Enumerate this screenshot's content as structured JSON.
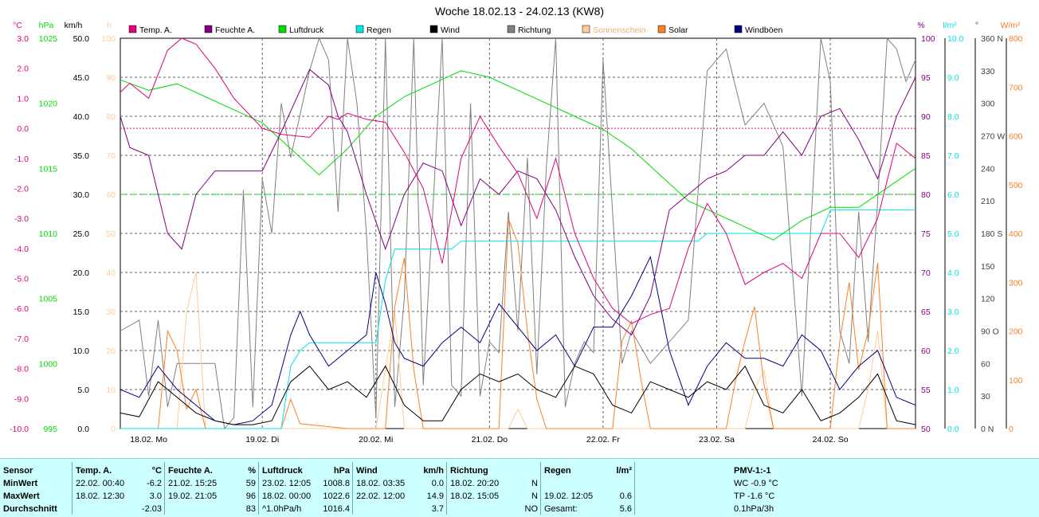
{
  "chart_data": {
    "type": "line",
    "title": "Woche 18.02.13 - 24.02.13 (KW8)",
    "x_range": [
      "18.02.2013 00:00",
      "25.02.2013 00:00"
    ],
    "x_tick_labels": [
      "18.02.  Mo",
      "19.02.  Di",
      "20.02.  Mi",
      "21.02.  Do",
      "22.02.  Fr",
      "23.02.  Sa",
      "24.02.  So"
    ],
    "legend": [
      {
        "name": "Temp. A.",
        "color": "#e0007f"
      },
      {
        "name": "Feuchte A.",
        "color": "#7f007f"
      },
      {
        "name": "Luftdruck",
        "color": "#00dd00"
      },
      {
        "name": "Regen",
        "color": "#00e5e5"
      },
      {
        "name": "Wind",
        "color": "#000000"
      },
      {
        "name": "Richtung",
        "color": "#808080"
      },
      {
        "name": "Sonnenschein",
        "color": "#ffcc99"
      },
      {
        "name": "Solar",
        "color": "#ff7f27"
      },
      {
        "name": "Windböen",
        "color": "#000080"
      }
    ],
    "axes": {
      "temp": {
        "unit": "°C",
        "range": [
          -10,
          3
        ],
        "ticks": [
          "3.0",
          "2.0",
          "1.0",
          "0.0",
          "-1.0",
          "-2.0",
          "-3.0",
          "-4.0",
          "-5.0",
          "-6.0",
          "-7.0",
          "-8.0",
          "-9.0",
          "-10.0"
        ],
        "color": "#e0007f"
      },
      "pressure": {
        "unit": "hPa",
        "range": [
          995,
          1025
        ],
        "ticks": [
          "1025",
          "1020",
          "1015",
          "1010",
          "1005",
          "1000",
          "995"
        ],
        "color": "#00dd00"
      },
      "wind": {
        "unit": "km/h",
        "range": [
          0,
          50
        ],
        "ticks": [
          "50.0",
          "45.0",
          "40.0",
          "35.0",
          "30.0",
          "25.0",
          "20.0",
          "15.0",
          "10.0",
          "5.0",
          "0.0"
        ],
        "color": "#000000"
      },
      "sunshine": {
        "unit": "h",
        "range": [
          0,
          100
        ],
        "ticks": [
          "100",
          "90",
          "80",
          "70",
          "60",
          "50",
          "40",
          "30",
          "20",
          "10",
          "0"
        ],
        "color": "#ffcc99"
      },
      "humidity": {
        "unit": "%",
        "range": [
          50,
          100
        ],
        "ticks": [
          "100",
          "95",
          "90",
          "85",
          "80",
          "75",
          "70",
          "65",
          "60",
          "55",
          "50"
        ],
        "color": "#7f007f"
      },
      "rain": {
        "unit": "l/m²",
        "range": [
          0,
          10
        ],
        "ticks": [
          "10.0",
          "9.0",
          "8.0",
          "7.0",
          "6.0",
          "5.0",
          "4.0",
          "3.0",
          "2.0",
          "1.0",
          "0.0"
        ],
        "color": "#00e5e5"
      },
      "direction": {
        "unit": "°",
        "range": [
          0,
          360
        ],
        "ticks": [
          "360 N",
          "330",
          "300",
          "270 W",
          "240",
          "210",
          "180 S",
          "150",
          "120",
          "90 O",
          "60",
          "30",
          "0 N"
        ],
        "color": "#404040"
      },
      "solar": {
        "unit": "W/m²",
        "range": [
          0,
          800
        ],
        "ticks": [
          "800",
          "700",
          "600",
          "500",
          "400",
          "300",
          "200",
          "100",
          "0"
        ],
        "color": "#ff7f27"
      }
    },
    "reference_lines": [
      {
        "axis": "temp",
        "value": 0.0,
        "color": "#e0007f",
        "style": "dotted"
      },
      {
        "axis": "humidity",
        "value": 80,
        "color": "#00dd00",
        "style": "dashed"
      }
    ],
    "series": [
      {
        "name": "Temp. A.",
        "axis": "temp",
        "color": "#e0007f",
        "x": [
          0,
          2,
          6,
          10,
          13,
          16,
          20,
          24,
          30,
          34,
          40,
          44,
          46,
          48,
          52,
          56,
          60,
          64,
          68,
          72,
          76,
          80,
          84,
          88,
          92,
          96,
          100,
          104,
          108,
          112,
          116,
          120,
          124,
          128,
          132,
          136,
          140,
          144,
          148,
          152,
          156,
          160,
          164,
          168
        ],
        "y": [
          1.2,
          1.5,
          1.0,
          2.6,
          3.0,
          2.8,
          2.0,
          1.0,
          0.0,
          -0.2,
          -0.3,
          0.4,
          0.3,
          0.5,
          0.3,
          0.2,
          -0.8,
          -2.0,
          -4.5,
          -1.0,
          0.4,
          -0.6,
          -1.5,
          -3.0,
          -1.0,
          -3.5,
          -5.0,
          -6.0,
          -6.5,
          -6.2,
          -6.0,
          -4.0,
          -2.5,
          -3.5,
          -5.2,
          -4.8,
          -4.5,
          -5.0,
          -3.5,
          -3.5,
          -4.3,
          -3.0,
          -0.5,
          -1.0
        ]
      },
      {
        "name": "Feuchte A.",
        "axis": "humidity",
        "color": "#7f007f",
        "x": [
          0,
          2,
          6,
          10,
          13,
          16,
          20,
          24,
          30,
          34,
          40,
          44,
          46,
          48,
          52,
          56,
          60,
          64,
          68,
          72,
          76,
          80,
          84,
          88,
          92,
          96,
          100,
          104,
          108,
          112,
          116,
          120,
          124,
          128,
          132,
          136,
          140,
          144,
          148,
          152,
          156,
          160,
          164,
          168
        ],
        "y": [
          90,
          86,
          85,
          75,
          73,
          80,
          83,
          83,
          83,
          88,
          96,
          94,
          90,
          88,
          80,
          73,
          80,
          84,
          83,
          76,
          82,
          80,
          83,
          82,
          78,
          72,
          67,
          64,
          62,
          67,
          78,
          80,
          82,
          83,
          85,
          85,
          88,
          85,
          90,
          91,
          87,
          82,
          90,
          95
        ]
      },
      {
        "name": "Luftdruck",
        "axis": "pressure",
        "color": "#00dd00",
        "x": [
          0,
          6,
          12,
          18,
          24,
          30,
          36,
          42,
          48,
          54,
          60,
          66,
          72,
          78,
          84,
          90,
          96,
          102,
          108,
          114,
          120,
          126,
          132,
          138,
          144,
          150,
          156,
          162,
          168
        ],
        "y": [
          1021.8,
          1021,
          1021.5,
          1020.5,
          1019.5,
          1018.5,
          1016.5,
          1014.5,
          1016.5,
          1019,
          1020.5,
          1021.5,
          1022.5,
          1022,
          1021,
          1020,
          1019,
          1018,
          1016.5,
          1014.5,
          1012.5,
          1011.5,
          1010.5,
          1009.5,
          1011,
          1012,
          1012,
          1013.5,
          1015
        ]
      },
      {
        "name": "Regen",
        "axis": "rain",
        "color": "#00e5e5",
        "x": [
          0,
          34,
          36,
          38,
          40,
          48,
          54,
          56,
          58,
          64,
          70,
          72,
          90,
          108,
          120,
          122,
          124,
          140,
          148,
          150,
          168
        ],
        "y": [
          0,
          0,
          1.6,
          2.0,
          2.2,
          2.2,
          2.2,
          3.8,
          4.6,
          4.6,
          4.6,
          4.8,
          4.8,
          4.8,
          4.8,
          4.8,
          5.0,
          5.0,
          5.0,
          5.6,
          5.6
        ]
      },
      {
        "name": "Wind",
        "axis": "wind",
        "color": "#000000",
        "x": [
          0,
          4,
          8,
          12,
          16,
          20,
          24,
          28,
          32,
          36,
          40,
          44,
          48,
          52,
          56,
          60,
          64,
          68,
          72,
          76,
          80,
          84,
          88,
          92,
          96,
          100,
          104,
          108,
          112,
          116,
          120,
          124,
          128,
          132,
          136,
          140,
          144,
          148,
          152,
          156,
          160,
          164,
          168
        ],
        "y": [
          2,
          1.5,
          6,
          4,
          2,
          1,
          0.5,
          0.5,
          1,
          6,
          8,
          5,
          6,
          4,
          8,
          3,
          1,
          1,
          5,
          7,
          6,
          7,
          5,
          4,
          8,
          7,
          3,
          2,
          6,
          5,
          4,
          6,
          5,
          8,
          3,
          2,
          5,
          1,
          2,
          4,
          7,
          1,
          0.5
        ]
      },
      {
        "name": "Richtung",
        "axis": "direction",
        "color": "#808080",
        "x": [
          0,
          4,
          6,
          8,
          10,
          12,
          16,
          20,
          22,
          24,
          26,
          28,
          30,
          32,
          34,
          36,
          40,
          42,
          44,
          46,
          48,
          50,
          52,
          54,
          56,
          58,
          60,
          62,
          64,
          66,
          68,
          70,
          72,
          74,
          76,
          78,
          80,
          82,
          84,
          86,
          88,
          90,
          92,
          94,
          96,
          98,
          100,
          102,
          104,
          106,
          108,
          112,
          116,
          120,
          124,
          128,
          132,
          136,
          140,
          144,
          148,
          150,
          152,
          154,
          156,
          158,
          160,
          162,
          164,
          166,
          168
        ],
        "y": [
          90,
          100,
          30,
          100,
          20,
          60,
          60,
          60,
          0,
          10,
          220,
          20,
          230,
          180,
          300,
          250,
          330,
          360,
          340,
          200,
          360,
          300,
          180,
          10,
          360,
          20,
          120,
          360,
          40,
          200,
          360,
          40,
          30,
          300,
          30,
          80,
          70,
          200,
          90,
          250,
          50,
          240,
          360,
          20,
          60,
          80,
          70,
          340,
          200,
          60,
          90,
          60,
          80,
          100,
          330,
          350,
          280,
          300,
          260,
          30,
          360,
          320,
          90,
          60,
          200,
          80,
          210,
          360,
          350,
          320,
          340
        ]
      },
      {
        "name": "Sonnenschein",
        "axis": "sunshine",
        "color": "#ffcc99",
        "x": [
          0,
          12,
          14,
          16,
          18,
          24,
          36,
          48,
          54,
          58,
          60,
          72,
          82,
          84,
          86,
          90,
          96,
          108,
          120,
          132,
          134,
          136,
          138,
          144,
          156,
          158,
          160,
          162,
          168
        ],
        "y": [
          0,
          0,
          30,
          40,
          0,
          0,
          0,
          0,
          0,
          30,
          0,
          0,
          0,
          5,
          0,
          0,
          0,
          0,
          0,
          0,
          10,
          15,
          0,
          0,
          0,
          10,
          25,
          0,
          0
        ]
      },
      {
        "name": "Solar",
        "axis": "solar",
        "color": "#ff7f27",
        "x": [
          0,
          8,
          10,
          12,
          14,
          16,
          18,
          24,
          34,
          36,
          38,
          48,
          56,
          58,
          60,
          62,
          64,
          72,
          80,
          82,
          84,
          86,
          88,
          90,
          92,
          96,
          104,
          106,
          108,
          110,
          112,
          120,
          128,
          130,
          132,
          134,
          136,
          138,
          144,
          150,
          152,
          154,
          156,
          158,
          160,
          162,
          168
        ],
        "y": [
          0,
          0,
          200,
          160,
          40,
          80,
          0,
          0,
          0,
          60,
          10,
          0,
          0,
          250,
          350,
          120,
          0,
          0,
          0,
          430,
          380,
          200,
          60,
          0,
          0,
          0,
          0,
          180,
          220,
          100,
          0,
          0,
          0,
          100,
          180,
          250,
          90,
          0,
          0,
          0,
          180,
          300,
          120,
          200,
          340,
          0,
          0
        ]
      },
      {
        "name": "Windböen",
        "axis": "wind",
        "color": "#000080",
        "x": [
          0,
          4,
          8,
          12,
          16,
          20,
          24,
          28,
          32,
          36,
          38,
          40,
          44,
          48,
          52,
          54,
          56,
          58,
          60,
          64,
          68,
          72,
          76,
          80,
          84,
          88,
          92,
          96,
          100,
          104,
          108,
          112,
          116,
          120,
          124,
          128,
          132,
          136,
          140,
          144,
          148,
          152,
          156,
          160,
          164,
          168
        ],
        "y": [
          5,
          4,
          8,
          5,
          3,
          1,
          0.5,
          1,
          3,
          12,
          15,
          12,
          8,
          10,
          12,
          20,
          16,
          11,
          9,
          8,
          11,
          13,
          11,
          16,
          13,
          10,
          12,
          8,
          13,
          13,
          17,
          22,
          10,
          3,
          8,
          11,
          9,
          9,
          8,
          12,
          10,
          5,
          8,
          10,
          4,
          3
        ]
      }
    ]
  },
  "stats": {
    "col1": {
      "h1": "Sensor",
      "r1": "MinWert",
      "r2": "MaxWert",
      "r3": "Durchschnitt"
    },
    "col2": {
      "h1": "Temp. A.",
      "unit": "°C",
      "r1_time": "22.02.  00:40",
      "r1_val": "-6.2",
      "r2_time": "18.02.  12:30",
      "r2_val": "3.0",
      "r3_val": "-2.03"
    },
    "col3": {
      "h1": "Feuchte A.",
      "unit": "%",
      "r1_time": "21.02.  15:25",
      "r1_val": "59",
      "r2_time": "19.02.  21:05",
      "r2_val": "96",
      "r3_val": "83"
    },
    "col4": {
      "h1": "Luftdruck",
      "unit": "hPa",
      "r1_time": "23.02.  12:05",
      "r1_val": "1008.8",
      "r2_time": "18.02.  00:00",
      "r2_val": "1022.6",
      "r3_time": "^1.0hPa/h",
      "r3_val": "1016.4"
    },
    "col5": {
      "h1": "Wind",
      "unit": "km/h",
      "r1_time": "18.02.  03:35",
      "r1_val": "0.0",
      "r2_time": "22.02.  12:00",
      "r2_val": "14.9",
      "r3_val": "3.7"
    },
    "col6": {
      "h1": "Richtung",
      "r1_time": "18.02.  20:20",
      "r1_val": "N",
      "r2_time": "18.02.  15:05",
      "r2_val": "N",
      "r3_val": "NO"
    },
    "col7": {
      "h1": "Regen",
      "unit": "l/m²",
      "r2_time": "19.02.  12:05",
      "r2_val": "0.6",
      "r3_time": "Gesamt:",
      "r3_val": "5.6"
    },
    "col8": {
      "h1": "PMV-1:-1",
      "r1": "WC -0.9 °C",
      "r2": "TP -1.6 °C",
      "r3": "0.1hPa/3h"
    }
  }
}
